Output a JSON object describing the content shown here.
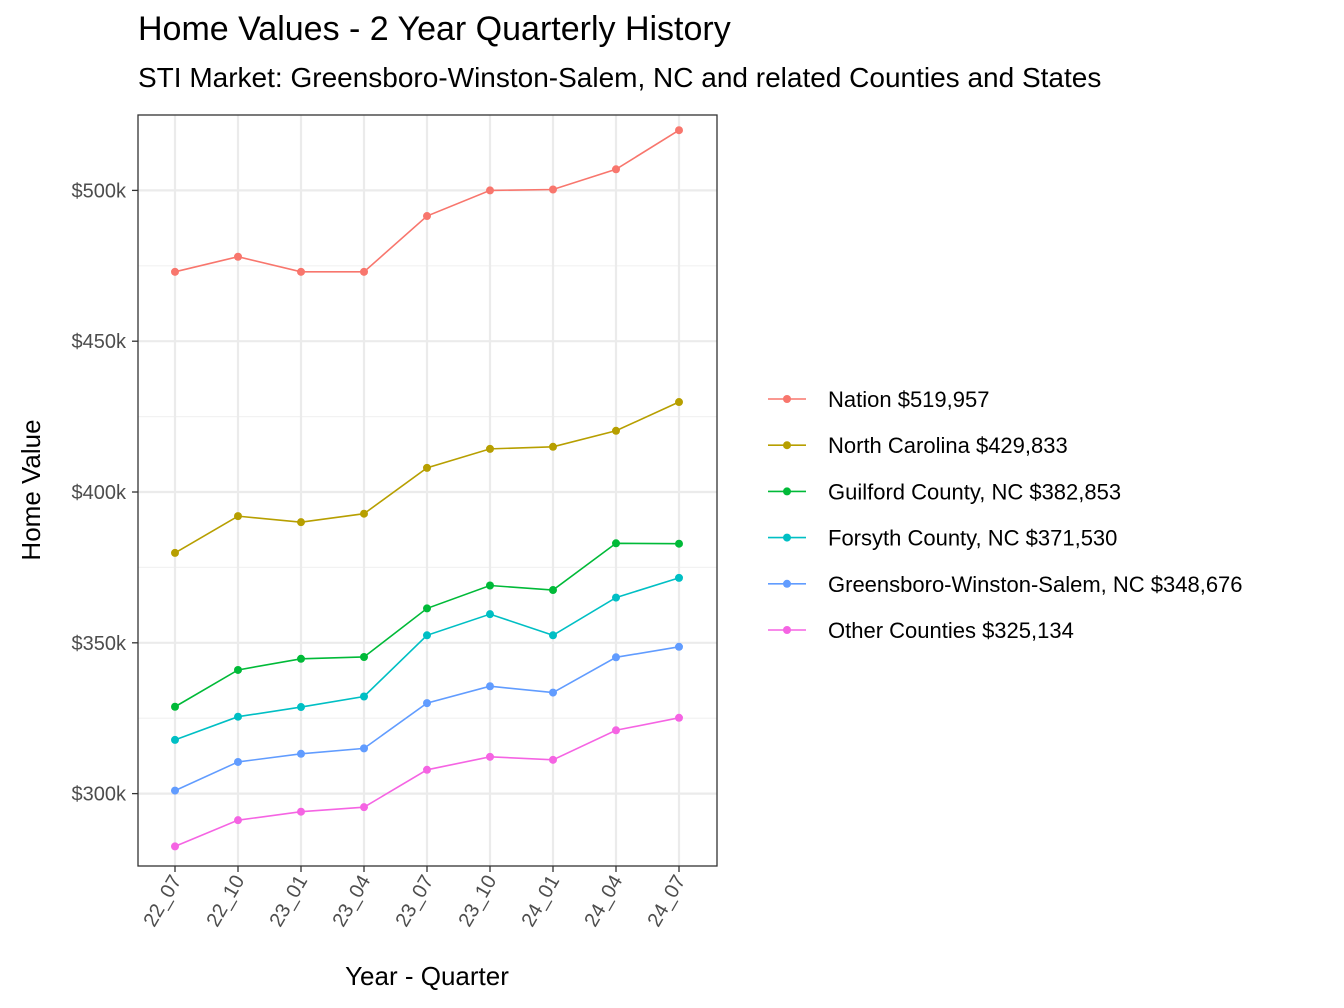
{
  "chart_data": {
    "type": "line",
    "title": "Home Values - 2 Year Quarterly History",
    "subtitle": "STI Market: Greensboro-Winston-Salem, NC and related Counties and States",
    "xlabel": "Year - Quarter",
    "ylabel": "Home Value",
    "categories": [
      "22_07",
      "22_10",
      "23_01",
      "23_04",
      "23_07",
      "23_10",
      "24_01",
      "24_04",
      "24_07"
    ],
    "ylim": [
      276000,
      525000
    ],
    "yticks": [
      300000,
      350000,
      400000,
      450000,
      500000
    ],
    "ytick_labels": [
      "$300k",
      "$350k",
      "$400k",
      "$450k",
      "$500k"
    ],
    "grid": true,
    "legend_position": "right",
    "series": [
      {
        "name": "Nation $519,957",
        "color": "#F8766D",
        "values": [
          473000,
          478000,
          473000,
          473000,
          491500,
          500000,
          500300,
          507000,
          519957
        ]
      },
      {
        "name": "North Carolina $429,833",
        "color": "#B79F00",
        "values": [
          379800,
          392000,
          390000,
          392800,
          408000,
          414300,
          415000,
          420300,
          429833
        ]
      },
      {
        "name": "Guilford County, NC $382,853",
        "color": "#00BA38",
        "values": [
          328800,
          341000,
          344700,
          345300,
          361400,
          369000,
          367500,
          383000,
          382853
        ]
      },
      {
        "name": "Forsyth County, NC $371,530",
        "color": "#00BFC4",
        "values": [
          317800,
          325500,
          328700,
          332200,
          352500,
          359500,
          352500,
          365000,
          371530
        ]
      },
      {
        "name": "Greensboro-Winston-Salem, NC $348,676",
        "color": "#619CFF",
        "values": [
          301000,
          310500,
          313200,
          315000,
          330000,
          335600,
          333500,
          345200,
          348676
        ]
      },
      {
        "name": "Other Counties $325,134",
        "color": "#F564E3",
        "values": [
          282500,
          291200,
          294000,
          295500,
          307900,
          312200,
          311200,
          321000,
          325134
        ]
      }
    ]
  }
}
